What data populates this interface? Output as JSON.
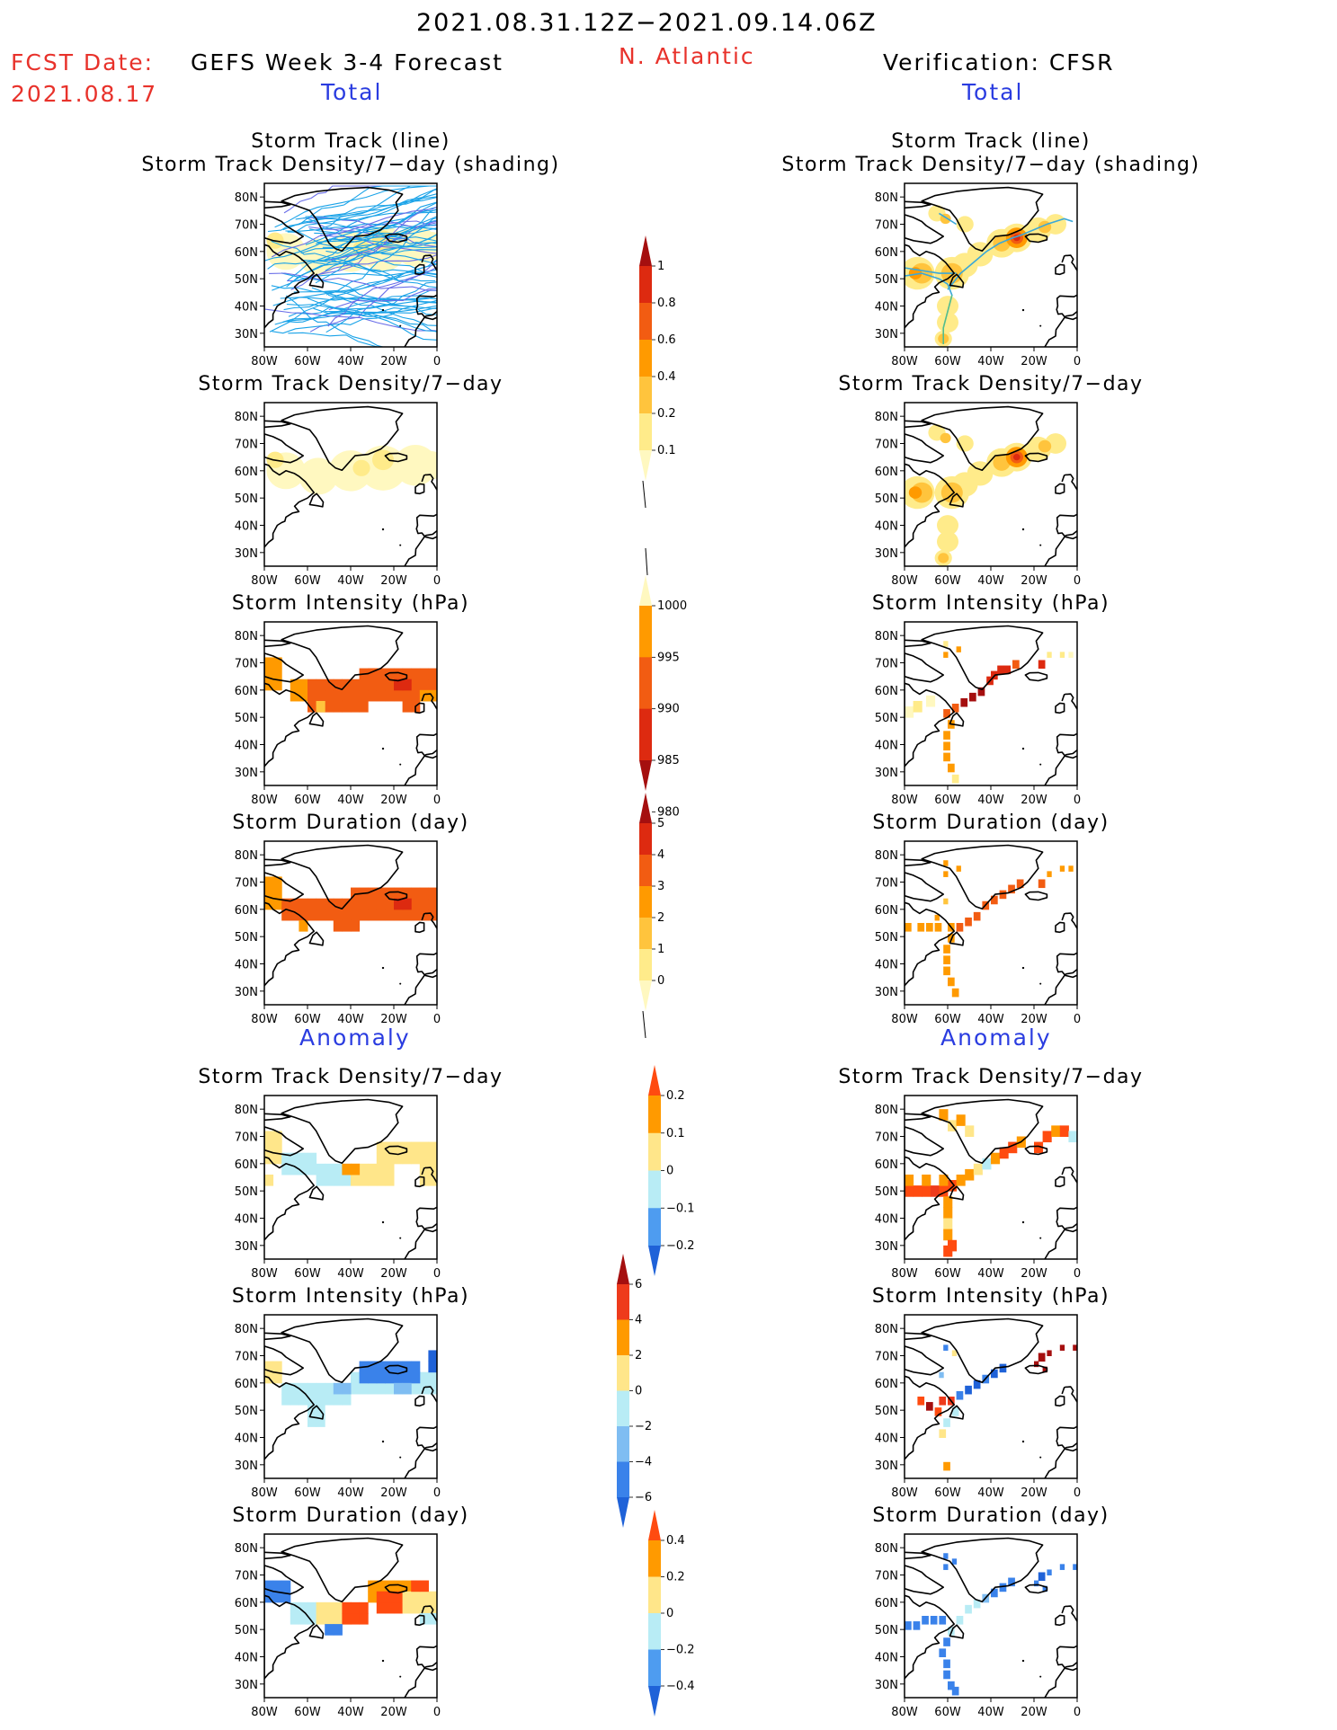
{
  "header": {
    "period": "2021.08.31.12Z−2021.09.14.06Z",
    "fcst_date_label": "FCST Date:",
    "fcst_date_value": "2021.08.17",
    "forecast_title": "GEFS Week 3-4 Forecast",
    "region": "N. Atlantic",
    "verification": "Verification: CFSR",
    "total_label": "Total",
    "anomaly_label": "Anomaly"
  },
  "colors": {
    "red_text": "#e8322b",
    "blue_text": "#2a3ce0",
    "map_frame": "#000000"
  },
  "panel_titles": {
    "track_line": "Storm Track (line)",
    "track_shading": "Storm Track Density/7−day (shading)",
    "density": "Storm Track Density/7−day",
    "intensity": "Storm Intensity (hPa)",
    "duration": "Storm Duration (day)"
  },
  "axes": {
    "lat_ticks": [
      "80N",
      "70N",
      "60N",
      "50N",
      "40N",
      "30N"
    ],
    "lon_ticks": [
      "80W",
      "60W",
      "40W",
      "20W",
      "0"
    ]
  },
  "colorbars": [
    {
      "name": "total-density",
      "ticks": [
        "1",
        "0.8",
        "0.6",
        "0.4",
        "0.2",
        "0.1"
      ],
      "colors": [
        "#a50f0f",
        "#dd2a10",
        "#f25c12",
        "#ff9a00",
        "#ffc43d",
        "#ffeb8a",
        "#fff8c0"
      ]
    },
    {
      "name": "total-intensity",
      "ticks": [
        "1000",
        "995",
        "990",
        "985",
        "980"
      ],
      "colors": [
        "#fff8c0",
        "#ff9a00",
        "#f25c12",
        "#dd2a10",
        "#a50f0f"
      ]
    },
    {
      "name": "total-duration",
      "ticks": [
        "5",
        "4",
        "3",
        "2",
        "1",
        "0"
      ],
      "colors": [
        "#a50f0f",
        "#dd2a10",
        "#f25c12",
        "#ff9a00",
        "#ffc43d",
        "#ffeb8a",
        "#fff8c0"
      ]
    },
    {
      "name": "anomaly-density",
      "ticks": [
        "0.2",
        "0.1",
        "0",
        "−0.1",
        "−0.2"
      ],
      "colors": [
        "#ff4b10",
        "#ff9a00",
        "#ffe68a",
        "#b8ecf5",
        "#4e9cf0",
        "#1f62d8"
      ]
    },
    {
      "name": "anomaly-intensity",
      "ticks": [
        "6",
        "4",
        "2",
        "0",
        "−2",
        "−4",
        "−6"
      ],
      "colors": [
        "#a50f0f",
        "#ee3b1c",
        "#ff9a00",
        "#ffe68a",
        "#b8ecf5",
        "#7fbdf2",
        "#3a82ea",
        "#1f62d8"
      ]
    },
    {
      "name": "anomaly-duration",
      "ticks": [
        "0.4",
        "0.2",
        "0",
        "−0.2",
        "−0.4"
      ],
      "colors": [
        "#ff4b10",
        "#ff9a00",
        "#ffe68a",
        "#b8ecf5",
        "#4e9cf0",
        "#1f62d8"
      ]
    }
  ],
  "chart_data": [
    {
      "type": "heatmap",
      "panel": "forecast-total-track",
      "title": "Storm Track (line)",
      "subtitle": "Storm Track Density/7−day (shading)",
      "xlim": [
        -80,
        0
      ],
      "ylim": [
        25,
        85
      ],
      "tracks_color": "#1aa3e8",
      "max_value": 0.2
    },
    {
      "type": "heatmap",
      "panel": "forecast-total-density",
      "title": "Storm Track Density/7−day",
      "xlim": [
        -80,
        0
      ],
      "ylim": [
        25,
        85
      ],
      "max_value": 0.2
    },
    {
      "type": "heatmap",
      "panel": "forecast-total-intensity",
      "title": "Storm Intensity (hPa)",
      "xlim": [
        -80,
        0
      ],
      "ylim": [
        25,
        85
      ],
      "value_range": [
        990,
        995
      ]
    },
    {
      "type": "heatmap",
      "panel": "forecast-total-duration",
      "title": "Storm Duration (day)",
      "xlim": [
        -80,
        0
      ],
      "ylim": [
        25,
        85
      ],
      "value_range": [
        3,
        4
      ]
    },
    {
      "type": "heatmap",
      "panel": "forecast-anomaly-density",
      "title": "Storm Track Density/7−day",
      "xlim": [
        -80,
        0
      ],
      "ylim": [
        25,
        85
      ],
      "value_range": [
        -0.1,
        0.1
      ]
    },
    {
      "type": "heatmap",
      "panel": "forecast-anomaly-intensity",
      "title": "Storm Intensity (hPa)",
      "xlim": [
        -80,
        0
      ],
      "ylim": [
        25,
        85
      ],
      "value_range": [
        -4,
        2
      ]
    },
    {
      "type": "heatmap",
      "panel": "forecast-anomaly-duration",
      "title": "Storm Duration (day)",
      "xlim": [
        -80,
        0
      ],
      "ylim": [
        25,
        85
      ],
      "value_range": [
        -0.4,
        0.4
      ]
    },
    {
      "type": "heatmap",
      "panel": "cfsr-total-track",
      "title": "Storm Track (line)",
      "subtitle": "Storm Track Density/7−day (shading)",
      "xlim": [
        -80,
        0
      ],
      "ylim": [
        25,
        85
      ],
      "max_value": 1.0
    },
    {
      "type": "heatmap",
      "panel": "cfsr-total-density",
      "title": "Storm Track Density/7−day",
      "xlim": [
        -80,
        0
      ],
      "ylim": [
        25,
        85
      ],
      "max_value": 1.0
    },
    {
      "type": "heatmap",
      "panel": "cfsr-total-intensity",
      "title": "Storm Intensity (hPa)",
      "xlim": [
        -80,
        0
      ],
      "ylim": [
        25,
        85
      ],
      "value_range": [
        980,
        1000
      ]
    },
    {
      "type": "heatmap",
      "panel": "cfsr-total-duration",
      "title": "Storm Duration (day)",
      "xlim": [
        -80,
        0
      ],
      "ylim": [
        25,
        85
      ],
      "value_range": [
        1,
        4
      ]
    },
    {
      "type": "heatmap",
      "panel": "cfsr-anomaly-density",
      "title": "Storm Track Density/7−day",
      "xlim": [
        -80,
        0
      ],
      "ylim": [
        25,
        85
      ],
      "value_range": [
        -0.1,
        0.2
      ]
    },
    {
      "type": "heatmap",
      "panel": "cfsr-anomaly-intensity",
      "title": "Storm Intensity (hPa)",
      "xlim": [
        -80,
        0
      ],
      "ylim": [
        25,
        85
      ],
      "value_range": [
        -6,
        6
      ]
    },
    {
      "type": "heatmap",
      "panel": "cfsr-anomaly-duration",
      "title": "Storm Duration (day)",
      "xlim": [
        -80,
        0
      ],
      "ylim": [
        25,
        85
      ],
      "value_range": [
        -0.4,
        -0.2
      ]
    }
  ]
}
